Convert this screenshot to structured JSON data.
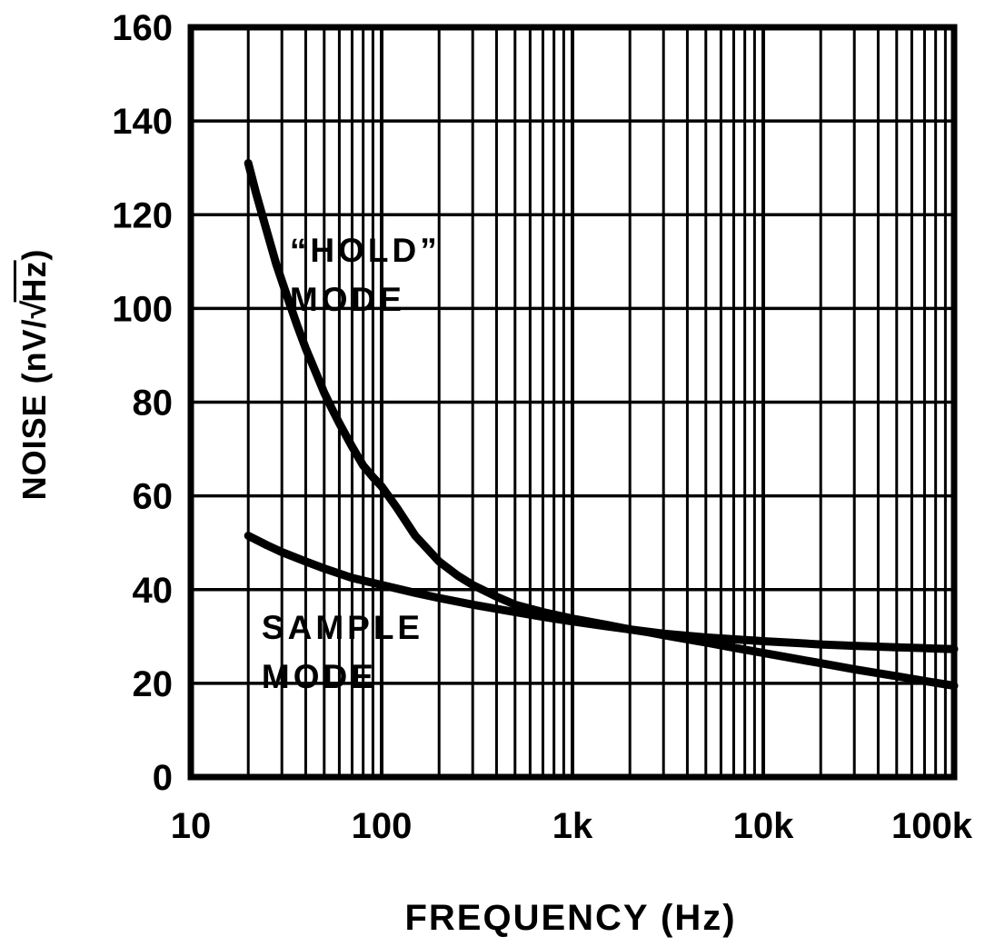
{
  "page": {
    "background": "#ffffff",
    "ink": "#000000"
  },
  "chart_data": {
    "type": "line",
    "title": "",
    "x_scale": "log",
    "xlim": [
      10,
      100000
    ],
    "ylim": [
      0,
      160
    ],
    "xlabel": "FREQUENCY (Hz)",
    "ylabel": {
      "pre": "NOISE (nV/",
      "radical": "√",
      "under_radical": "Hz",
      "post": ")"
    },
    "grid": {
      "x_minor_per_decade": [
        2,
        3,
        4,
        5,
        6,
        7,
        8,
        9
      ],
      "y_step": 20,
      "legend": "none"
    },
    "xticks": [
      {
        "value": 10,
        "label": "10"
      },
      {
        "value": 100,
        "label": "100"
      },
      {
        "value": 1000,
        "label": "1k"
      },
      {
        "value": 10000,
        "label": "10k"
      },
      {
        "value": 100000,
        "label": "100k"
      }
    ],
    "yticks": [
      {
        "value": 0,
        "label": "0"
      },
      {
        "value": 20,
        "label": "20"
      },
      {
        "value": 40,
        "label": "40"
      },
      {
        "value": 60,
        "label": "60"
      },
      {
        "value": 80,
        "label": "80"
      },
      {
        "value": 100,
        "label": "100"
      },
      {
        "value": 120,
        "label": "120"
      },
      {
        "value": 140,
        "label": "140"
      },
      {
        "value": 160,
        "label": "160"
      }
    ],
    "series": [
      {
        "id": "hold-mode",
        "name": "“HOLD” MODE",
        "points": [
          [
            20,
            131
          ],
          [
            22,
            124.5
          ],
          [
            25,
            116.5
          ],
          [
            28,
            109.5
          ],
          [
            32,
            102.5
          ],
          [
            36,
            96.5
          ],
          [
            40,
            91.5
          ],
          [
            45,
            86.5
          ],
          [
            50,
            82
          ],
          [
            55,
            78.5
          ],
          [
            60,
            75.5
          ],
          [
            70,
            70.5
          ],
          [
            80,
            66.5
          ],
          [
            90,
            64
          ],
          [
            100,
            62
          ],
          [
            120,
            57.5
          ],
          [
            150,
            51.5
          ],
          [
            200,
            46
          ],
          [
            250,
            43
          ],
          [
            300,
            41
          ],
          [
            400,
            38.5
          ],
          [
            500,
            36.8
          ],
          [
            700,
            35.2
          ],
          [
            1000,
            33.8
          ],
          [
            1500,
            32.5
          ],
          [
            2000,
            31.5
          ],
          [
            2500,
            30.9
          ],
          [
            3000,
            30.3
          ],
          [
            4000,
            29.4
          ],
          [
            5000,
            28.7
          ],
          [
            7000,
            27.6
          ],
          [
            10000,
            26.5
          ],
          [
            15000,
            25.2
          ],
          [
            20000,
            24.3
          ],
          [
            30000,
            23
          ],
          [
            50000,
            21.5
          ],
          [
            70000,
            20.5
          ],
          [
            100000,
            19.5
          ]
        ]
      },
      {
        "id": "sample-mode",
        "name": "SAMPLE MODE",
        "points": [
          [
            20,
            51.5
          ],
          [
            25,
            49.5
          ],
          [
            30,
            48
          ],
          [
            40,
            46
          ],
          [
            50,
            44.5
          ],
          [
            70,
            42.5
          ],
          [
            100,
            41
          ],
          [
            150,
            39.3
          ],
          [
            200,
            38.2
          ],
          [
            300,
            36.8
          ],
          [
            500,
            35.2
          ],
          [
            700,
            34.2
          ],
          [
            1000,
            33.2
          ],
          [
            1500,
            32.2
          ],
          [
            2000,
            31.5
          ],
          [
            3000,
            30.6
          ],
          [
            5000,
            29.8
          ],
          [
            7000,
            29.4
          ],
          [
            10000,
            29
          ],
          [
            15000,
            28.6
          ],
          [
            20000,
            28.3
          ],
          [
            30000,
            28
          ],
          [
            50000,
            27.7
          ],
          [
            70000,
            27.5
          ],
          [
            100000,
            27.3
          ]
        ]
      }
    ],
    "annotations": [
      {
        "series": "hold-mode",
        "lines": [
          {
            "text": "“HOLD”",
            "x": 33,
            "y": 110
          },
          {
            "text": "MODE",
            "x": 33,
            "y": 99.5
          }
        ]
      },
      {
        "series": "sample-mode",
        "lines": [
          {
            "text": "SAMPLE",
            "x": 23.5,
            "y": 29.5
          },
          {
            "text": "MODE",
            "x": 23.5,
            "y": 19
          }
        ]
      }
    ]
  }
}
